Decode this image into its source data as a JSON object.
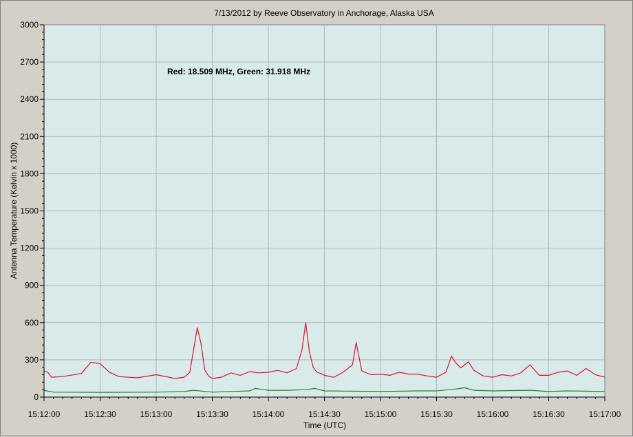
{
  "chart_data": {
    "type": "line",
    "title": "7/13/2012  by  Reeve Observatory  in  Anchorage, Alaska  USA",
    "xlabel": "Time (UTC)",
    "ylabel": "Antenna Temperature (Kelvin x 1000)",
    "annotation": "Red: 18.509 MHz, Green: 31.918 MHz",
    "ylim": [
      0,
      3000
    ],
    "y_ticks": [
      "0",
      "300",
      "600",
      "900",
      "1200",
      "1500",
      "1800",
      "2100",
      "2400",
      "2700",
      "3000"
    ],
    "x_ticks": [
      "15:12:00",
      "15:12:30",
      "15:13:00",
      "15:13:30",
      "15:14:00",
      "15:14:30",
      "15:15:00",
      "15:15:30",
      "15:16:00",
      "15:16:30",
      "15:17:00"
    ],
    "grid": true,
    "series": [
      {
        "name": "Red: 18.509 MHz",
        "color": "#e0102a",
        "x": [
          "15:12:00",
          "15:12:02",
          "15:12:04",
          "15:12:10",
          "15:12:20",
          "15:12:25",
          "15:12:30",
          "15:12:35",
          "15:12:40",
          "15:12:50",
          "15:13:00",
          "15:13:05",
          "15:13:10",
          "15:13:15",
          "15:13:18",
          "15:13:20",
          "15:13:22",
          "15:13:24",
          "15:13:26",
          "15:13:28",
          "15:13:30",
          "15:13:35",
          "15:13:40",
          "15:13:45",
          "15:13:50",
          "15:13:55",
          "15:14:00",
          "15:14:05",
          "15:14:10",
          "15:14:15",
          "15:14:18",
          "15:14:20",
          "15:14:22",
          "15:14:24",
          "15:14:26",
          "15:14:28",
          "15:14:30",
          "15:14:35",
          "15:14:40",
          "15:14:45",
          "15:14:47",
          "15:14:50",
          "15:14:55",
          "15:15:00",
          "15:15:05",
          "15:15:10",
          "15:15:15",
          "15:15:20",
          "15:15:25",
          "15:15:30",
          "15:15:35",
          "15:15:38",
          "15:15:40",
          "15:15:43",
          "15:15:47",
          "15:15:50",
          "15:15:55",
          "15:16:00",
          "15:16:05",
          "15:16:10",
          "15:16:15",
          "15:16:20",
          "15:16:25",
          "15:16:30",
          "15:16:35",
          "15:16:40",
          "15:16:45",
          "15:16:50",
          "15:16:55",
          "15:17:00"
        ],
        "y": [
          210,
          200,
          160,
          165,
          190,
          280,
          270,
          200,
          165,
          155,
          180,
          165,
          150,
          160,
          200,
          380,
          560,
          430,
          220,
          170,
          150,
          160,
          195,
          175,
          205,
          195,
          200,
          215,
          195,
          230,
          380,
          600,
          360,
          240,
          200,
          190,
          175,
          160,
          200,
          260,
          440,
          210,
          180,
          185,
          175,
          200,
          185,
          185,
          170,
          160,
          200,
          330,
          280,
          235,
          285,
          215,
          170,
          160,
          180,
          170,
          195,
          260,
          175,
          175,
          200,
          210,
          175,
          230,
          180,
          160
        ]
      },
      {
        "name": "Green: 31.918 MHz",
        "color": "#1a8a1a",
        "x": [
          "15:12:00",
          "15:12:05",
          "15:12:30",
          "15:13:00",
          "15:13:15",
          "15:13:20",
          "15:13:30",
          "15:13:50",
          "15:13:53",
          "15:14:00",
          "15:14:10",
          "15:14:20",
          "15:14:25",
          "15:14:30",
          "15:15:00",
          "15:15:20",
          "15:15:30",
          "15:15:40",
          "15:15:45",
          "15:15:50",
          "15:16:00",
          "15:16:20",
          "15:16:30",
          "15:16:40",
          "15:17:00"
        ],
        "y": [
          55,
          40,
          38,
          40,
          45,
          55,
          40,
          50,
          70,
          55,
          55,
          60,
          70,
          50,
          45,
          50,
          50,
          65,
          75,
          55,
          50,
          55,
          45,
          50,
          45
        ]
      }
    ]
  }
}
